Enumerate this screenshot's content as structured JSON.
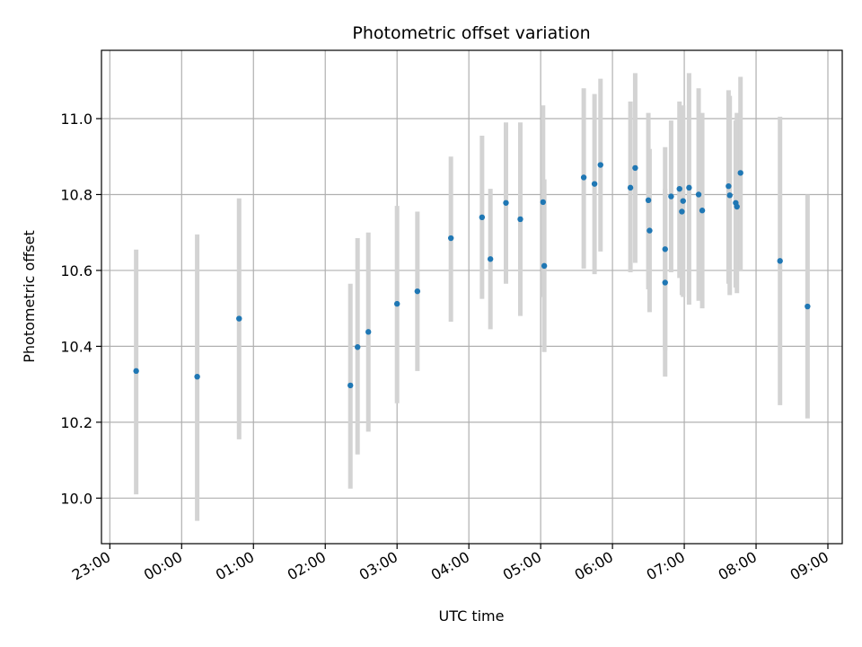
{
  "chart_data": {
    "type": "scatter",
    "title": "Photometric offset variation",
    "xlabel": "UTC time",
    "ylabel": "Photometric offset",
    "x_axis_type": "time",
    "xlim": [
      "22:53",
      "09:12"
    ],
    "ylim": [
      9.88,
      11.18
    ],
    "xticks": [
      "23:00",
      "00:00",
      "01:00",
      "02:00",
      "03:00",
      "04:00",
      "05:00",
      "06:00",
      "07:00",
      "08:00",
      "09:00"
    ],
    "yticks": [
      "10.0",
      "10.2",
      "10.4",
      "10.6",
      "10.8",
      "11.0"
    ],
    "grid": true,
    "marker_color": "#1f77b4",
    "errorbar_color": "#d3d3d3",
    "points": [
      {
        "t": "23:22",
        "y": 10.335,
        "lo": 10.01,
        "hi": 10.655
      },
      {
        "t": "00:13",
        "y": 10.32,
        "lo": 9.94,
        "hi": 10.695
      },
      {
        "t": "00:48",
        "y": 10.473,
        "lo": 10.155,
        "hi": 10.79
      },
      {
        "t": "02:21",
        "y": 10.297,
        "lo": 10.025,
        "hi": 10.565
      },
      {
        "t": "02:27",
        "y": 10.398,
        "lo": 10.115,
        "hi": 10.685
      },
      {
        "t": "02:36",
        "y": 10.438,
        "lo": 10.175,
        "hi": 10.7
      },
      {
        "t": "03:00",
        "y": 10.512,
        "lo": 10.25,
        "hi": 10.77
      },
      {
        "t": "03:17",
        "y": 10.545,
        "lo": 10.335,
        "hi": 10.755
      },
      {
        "t": "03:45",
        "y": 10.685,
        "lo": 10.465,
        "hi": 10.9
      },
      {
        "t": "04:11",
        "y": 10.74,
        "lo": 10.525,
        "hi": 10.955
      },
      {
        "t": "04:18",
        "y": 10.63,
        "lo": 10.445,
        "hi": 10.815
      },
      {
        "t": "04:31",
        "y": 10.778,
        "lo": 10.565,
        "hi": 10.99
      },
      {
        "t": "04:43",
        "y": 10.735,
        "lo": 10.48,
        "hi": 10.99
      },
      {
        "t": "05:02",
        "y": 10.78,
        "lo": 10.53,
        "hi": 11.035
      },
      {
        "t": "05:03",
        "y": 10.612,
        "lo": 10.385,
        "hi": 10.84
      },
      {
        "t": "05:36",
        "y": 10.845,
        "lo": 10.605,
        "hi": 11.08
      },
      {
        "t": "05:45",
        "y": 10.828,
        "lo": 10.59,
        "hi": 11.065
      },
      {
        "t": "05:50",
        "y": 10.878,
        "lo": 10.65,
        "hi": 11.105
      },
      {
        "t": "06:15",
        "y": 10.818,
        "lo": 10.595,
        "hi": 11.045
      },
      {
        "t": "06:19",
        "y": 10.87,
        "lo": 10.62,
        "hi": 11.12
      },
      {
        "t": "06:30",
        "y": 10.785,
        "lo": 10.55,
        "hi": 11.015
      },
      {
        "t": "06:31",
        "y": 10.705,
        "lo": 10.49,
        "hi": 10.92
      },
      {
        "t": "06:44",
        "y": 10.568,
        "lo": 10.32,
        "hi": 10.815
      },
      {
        "t": "06:44",
        "y": 10.656,
        "lo": 10.39,
        "hi": 10.925
      },
      {
        "t": "06:49",
        "y": 10.795,
        "lo": 10.595,
        "hi": 10.995
      },
      {
        "t": "06:56",
        "y": 10.815,
        "lo": 10.58,
        "hi": 11.045
      },
      {
        "t": "06:58",
        "y": 10.755,
        "lo": 10.535,
        "hi": 10.975
      },
      {
        "t": "06:59",
        "y": 10.783,
        "lo": 10.53,
        "hi": 11.035
      },
      {
        "t": "07:04",
        "y": 10.818,
        "lo": 10.51,
        "hi": 11.12
      },
      {
        "t": "07:12",
        "y": 10.8,
        "lo": 10.52,
        "hi": 11.08
      },
      {
        "t": "07:15",
        "y": 10.758,
        "lo": 10.5,
        "hi": 11.015
      },
      {
        "t": "07:37",
        "y": 10.822,
        "lo": 10.565,
        "hi": 11.075
      },
      {
        "t": "07:38",
        "y": 10.798,
        "lo": 10.535,
        "hi": 11.06
      },
      {
        "t": "07:43",
        "y": 10.778,
        "lo": 10.555,
        "hi": 10.995
      },
      {
        "t": "07:44",
        "y": 10.768,
        "lo": 10.54,
        "hi": 11.015
      },
      {
        "t": "07:47",
        "y": 10.857,
        "lo": 10.6,
        "hi": 11.11
      },
      {
        "t": "08:20",
        "y": 10.625,
        "lo": 10.245,
        "hi": 11.005
      },
      {
        "t": "08:43",
        "y": 10.505,
        "lo": 10.21,
        "hi": 10.8
      }
    ]
  }
}
